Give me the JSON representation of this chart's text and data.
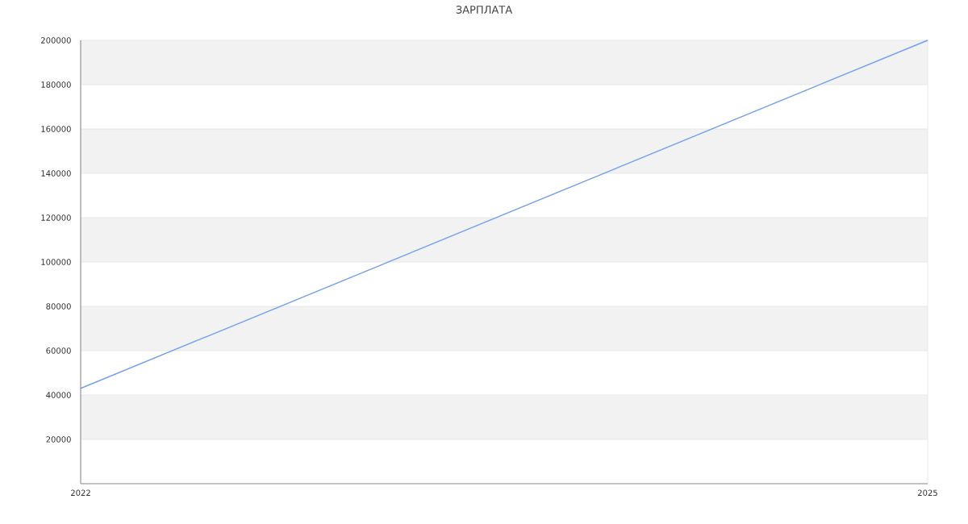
{
  "chart_data": {
    "type": "line",
    "title": "ЗАРПЛАТА",
    "x": [
      2022,
      2025
    ],
    "series": [
      {
        "color": "#749ff2",
        "values": [
          43000,
          200000
        ]
      }
    ],
    "xlim": [
      2022,
      2025
    ],
    "ylim": [
      0,
      200000
    ],
    "xticks": [
      2022,
      2025
    ],
    "yticks": [
      20000,
      40000,
      60000,
      80000,
      100000,
      120000,
      140000,
      160000,
      180000,
      200000
    ],
    "grid": true,
    "bands": [
      {
        "axis": "y",
        "from": 20000,
        "to": 40000,
        "color": "#f2f2f2"
      },
      {
        "axis": "y",
        "from": 60000,
        "to": 80000,
        "color": "#f2f2f2"
      },
      {
        "axis": "y",
        "from": 100000,
        "to": 120000,
        "color": "#f2f2f2"
      },
      {
        "axis": "y",
        "from": 140000,
        "to": 160000,
        "color": "#f2f2f2"
      },
      {
        "axis": "y",
        "from": 180000,
        "to": 200000,
        "color": "#f2f2f2"
      }
    ],
    "marker": "none",
    "line_style": "solid"
  }
}
